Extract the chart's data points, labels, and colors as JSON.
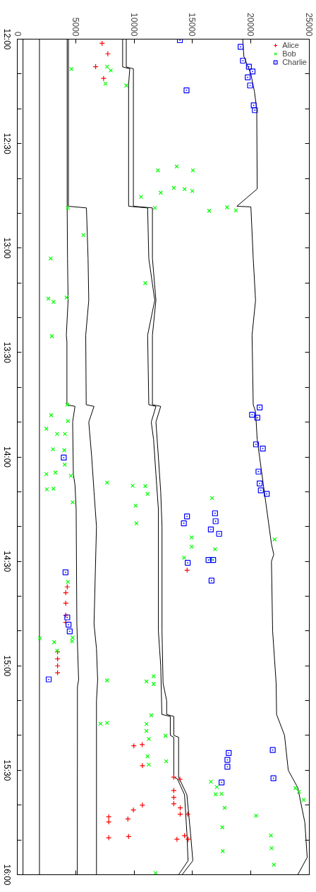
{
  "chart_data": {
    "type": "scatter",
    "xlim": [
      0,
      25000
    ],
    "ylim": [
      16,
      12
    ],
    "xticks": [
      0,
      5000,
      10000,
      15000,
      20000,
      25000
    ],
    "yticks": [
      {
        "value": 12,
        "label": "12:00"
      },
      {
        "value": 12.1667,
        "label": null
      },
      {
        "value": 12.3333,
        "label": null
      },
      {
        "value": 12.5,
        "label": "12:30"
      },
      {
        "value": 12.6667,
        "label": null
      },
      {
        "value": 12.8333,
        "label": null
      },
      {
        "value": 13,
        "label": "13:00"
      },
      {
        "value": 13.1667,
        "label": null
      },
      {
        "value": 13.3333,
        "label": null
      },
      {
        "value": 13.5,
        "label": "13:30"
      },
      {
        "value": 13.6667,
        "label": null
      },
      {
        "value": 13.8333,
        "label": null
      },
      {
        "value": 14,
        "label": "14:00"
      },
      {
        "value": 14.1667,
        "label": null
      },
      {
        "value": 14.3333,
        "label": null
      },
      {
        "value": 14.5,
        "label": "14:30"
      },
      {
        "value": 14.6667,
        "label": null
      },
      {
        "value": 14.8333,
        "label": null
      },
      {
        "value": 15,
        "label": "15:00"
      },
      {
        "value": 15.1667,
        "label": null
      },
      {
        "value": 15.3333,
        "label": null
      },
      {
        "value": 15.5,
        "label": "15:30"
      },
      {
        "value": 15.6667,
        "label": null
      },
      {
        "value": 15.8333,
        "label": null
      },
      {
        "value": 16,
        "label": "16:00"
      }
    ],
    "legend": "top right",
    "series": [
      {
        "type": "line",
        "color": "#000000",
        "values": [
          12,
          16
        ],
        "x": [
          490,
          490
        ]
      },
      {
        "type": "line",
        "color": "#000000",
        "values": [
          12,
          16
        ],
        "x": [
          1900,
          1900
        ]
      },
      {
        "type": "line",
        "color": "#000000",
        "values": [
          12,
          12.8,
          13.05,
          13.25,
          13.417,
          13.45,
          13.75,
          13.758,
          13.833,
          14.083,
          14.133,
          14.25,
          14.8,
          15.067,
          15.1,
          16
        ],
        "x": [
          4270,
          4270,
          4300,
          4350,
          4200,
          4250,
          4250,
          4940,
          4740,
          4800,
          4940,
          5040,
          5100,
          5250,
          5150,
          5140
        ]
      },
      {
        "type": "line",
        "color": "#000000",
        "values": [
          12,
          12.8,
          12.808,
          13.05,
          13.25,
          13.417,
          13.75,
          13.758,
          13.833,
          14,
          14.167,
          14.333,
          14.8,
          14.917,
          15.067,
          15.167,
          16
        ],
        "x": [
          4380,
          4380,
          5920,
          6060,
          6120,
          5860,
          5900,
          6570,
          6120,
          6370,
          6570,
          6780,
          6570,
          6780,
          6880,
          6780,
          6780
        ]
      },
      {
        "type": "line",
        "color": "#000000",
        "values": [
          12,
          12.133,
          12.142,
          12.217,
          12.8,
          12.808,
          13.05,
          13.25,
          13.417,
          13.75,
          13.758,
          13.833,
          13.917,
          14.083,
          14.25,
          14.833,
          15,
          15.233,
          15.242,
          15.333,
          15.342,
          15.533,
          15.542,
          15.617,
          15.8,
          15.933,
          16
        ],
        "x": [
          9020,
          9020,
          9630,
          9530,
          9530,
          11160,
          11260,
          11770,
          11160,
          11260,
          11870,
          11470,
          11670,
          11870,
          12080,
          12080,
          12280,
          12380,
          13100,
          13100,
          13400,
          13400,
          13710,
          14320,
          14520,
          14620,
          13810
        ]
      },
      {
        "type": "line",
        "color": "#000000",
        "values": [
          12,
          12.133,
          12.142,
          12.8,
          12.808,
          13.05,
          13.25,
          13.417,
          13.75,
          13.758,
          13.833,
          14,
          14.167,
          14.333,
          14.833,
          15.083,
          15.167,
          15.233,
          15.242,
          15.333,
          15.342,
          15.533,
          15.617,
          15.8,
          15.933,
          16
        ],
        "x": [
          9330,
          9330,
          9940,
          9940,
          11570,
          11570,
          11870,
          11570,
          11570,
          12280,
          11870,
          12080,
          12280,
          12390,
          12390,
          12480,
          12790,
          12790,
          13400,
          13400,
          13810,
          13810,
          14520,
          14830,
          15030,
          14110
        ]
      },
      {
        "type": "line",
        "color": "#000000",
        "values": [
          12,
          12.083,
          12.167,
          12.25,
          12.333,
          12.717,
          12.8,
          12.803,
          13.05,
          13.25,
          13.417,
          13.75,
          13.783,
          13.917,
          14.167,
          14.417,
          14.467,
          14.5,
          14.833,
          15.083,
          15.233,
          15.333,
          15.5,
          15.583,
          15.75,
          15.917,
          16
        ],
        "x": [
          19300,
          19400,
          20000,
          20300,
          20500,
          20540,
          18800,
          20000,
          20200,
          20400,
          20100,
          20200,
          20400,
          20540,
          21150,
          21760,
          21960,
          21760,
          21860,
          22160,
          22200,
          22880,
          23200,
          24010,
          24620,
          24820,
          24010
        ]
      },
      {
        "name": "Alice",
        "color": "#ff0000",
        "marker": "cross",
        "values": [
          12.02,
          12.07,
          12.132,
          12.188,
          14.542,
          14.622,
          14.65,
          14.7,
          14.758,
          14.792,
          14.933,
          14.967,
          15,
          15.033,
          15.383,
          15.377,
          15.478,
          15.533,
          15.543,
          15.597,
          15.63,
          15.66,
          15.667,
          15.69,
          15.68,
          15.71,
          15.71,
          15.723,
          15.747,
          15.733,
          15.823,
          15.817,
          15.83,
          15.813,
          15.83
        ],
        "x": [
          7260,
          7750,
          6710,
          7390,
          14540,
          4280,
          4150,
          4150,
          4150,
          4150,
          3450,
          3450,
          3450,
          3450,
          9980,
          10690,
          10710,
          13400,
          13920,
          13400,
          13400,
          13400,
          10710,
          9940,
          13950,
          13950,
          14590,
          7830,
          7830,
          9470,
          7830,
          9530,
          13670,
          14320,
          14630
        ]
      },
      {
        "name": "Bob",
        "color": "#00ff00",
        "marker": "x",
        "values": [
          12.143,
          12.132,
          12.15,
          12.213,
          12.222,
          12.628,
          12.61,
          12.628,
          12.755,
          12.735,
          12.712,
          12.718,
          12.727,
          12.808,
          12.822,
          12.805,
          12.82,
          12.808,
          12.938,
          13.05,
          13.168,
          13.242,
          13.258,
          13.237,
          13.422,
          13.75,
          13.8,
          13.865,
          13.89,
          13.89,
          13.828,
          13.963,
          13.968,
          14.037,
          14.075,
          14.082,
          14.155,
          14.152,
          14.09,
          14.217,
          14.123,
          14.138,
          14.14,
          14.177,
          14.233,
          14.318,
          14.197,
          14.385,
          14.43,
          14.482,
          14.442,
          14.487,
          14.395,
          14.598,
          14.868,
          14.887,
          14.928,
          14.865,
          14.882,
          15.07,
          15.075,
          15.05,
          15.087,
          15.237,
          15.277,
          15.273,
          15.278,
          15.312,
          15.35,
          15.335,
          15.433,
          15.473,
          15.457,
          15.555,
          15.58,
          15.613,
          15.615,
          15.68,
          15.718,
          15.773,
          15.887,
          15.812,
          15.873,
          15.952,
          15.585,
          15.603,
          15.642,
          15.992
        ],
        "x": [
          4630,
          7690,
          8000,
          7550,
          9330,
          12040,
          13650,
          15040,
          10590,
          12280,
          13400,
          14320,
          14980,
          11780,
          16430,
          17960,
          18710,
          4330,
          5660,
          2860,
          10960,
          2660,
          3100,
          4220,
          2960,
          4280,
          2900,
          2490,
          3410,
          4080,
          4330,
          3060,
          4020,
          4060,
          3270,
          2490,
          2530,
          3100,
          4590,
          4740,
          7690,
          9880,
          10960,
          11160,
          10140,
          10200,
          16670,
          14930,
          14930,
          14280,
          16930,
          16570,
          22030,
          4330,
          1940,
          3160,
          3410,
          4740,
          4690,
          7690,
          11060,
          11670,
          11670,
          11470,
          7120,
          7690,
          11060,
          11060,
          11260,
          12690,
          11160,
          11260,
          12750,
          16570,
          17080,
          17490,
          16980,
          17750,
          20440,
          17550,
          17590,
          21710,
          21770,
          21970,
          23810,
          24110,
          24520,
          11840
        ]
      },
      {
        "name": "Charlie",
        "color": "#0000ff",
        "marker": "square",
        "values": [
          12.005,
          12.037,
          12.103,
          12.132,
          12.183,
          12.155,
          12.222,
          12.245,
          12.34,
          12.317,
          14.003,
          13.763,
          13.798,
          13.812,
          13.94,
          13.96,
          14.07,
          14.127,
          14.16,
          14.177,
          14.285,
          14.318,
          14.27,
          14.308,
          14.347,
          14.368,
          14.493,
          14.493,
          14.507,
          14.592,
          14.552,
          14.768,
          14.803,
          14.835,
          15.065,
          15.403,
          15.538,
          15.417,
          15.45,
          15.483,
          15.558
        ],
        "x": [
          13920,
          19120,
          19320,
          19830,
          19730,
          20140,
          19930,
          14490,
          20340,
          20240,
          3980,
          20750,
          20100,
          20550,
          20440,
          21020,
          20650,
          20750,
          20850,
          21360,
          14530,
          14260,
          16930,
          16980,
          16570,
          17280,
          16370,
          16770,
          14590,
          16630,
          4130,
          4280,
          4390,
          4490,
          2690,
          21870,
          21930,
          18100,
          17990,
          17990,
          17490
        ]
      }
    ]
  }
}
